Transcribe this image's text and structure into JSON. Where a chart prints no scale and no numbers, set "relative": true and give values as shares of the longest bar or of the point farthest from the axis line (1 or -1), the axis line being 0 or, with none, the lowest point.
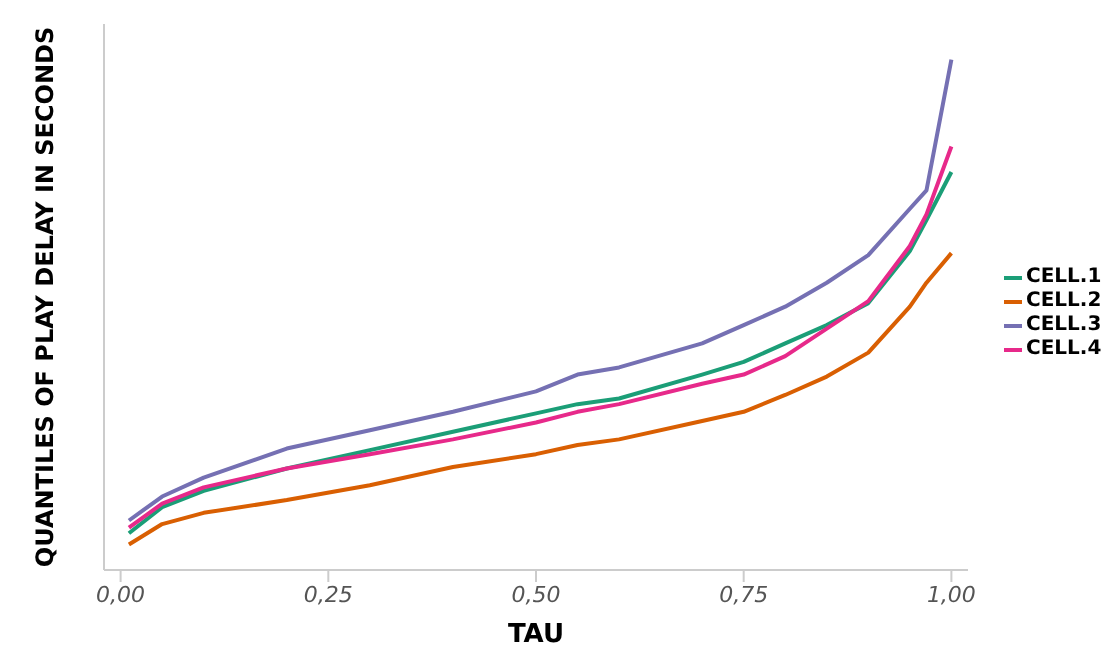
{
  "chart_data": {
    "type": "line",
    "xlabel": "TAU",
    "ylabel": "QUANTILES OF PLAY DELAY IN SECONDS",
    "relative": true,
    "x": [
      0.01,
      0.05,
      0.1,
      0.2,
      0.3,
      0.4,
      0.5,
      0.55,
      0.6,
      0.7,
      0.75,
      0.8,
      0.85,
      0.9,
      0.95,
      0.97,
      1.0
    ],
    "xlim": [
      -0.02,
      1.02
    ],
    "xticks": [
      {
        "value": 0,
        "label": "0,00"
      },
      {
        "value": 0.25,
        "label": "0,25"
      },
      {
        "value": 0.5,
        "label": "0,50"
      },
      {
        "value": 0.75,
        "label": "0,75"
      },
      {
        "value": 1,
        "label": "1,00"
      }
    ],
    "series": [
      {
        "name": "CELL.1",
        "color": "#1b9e77",
        "values": [
          0.072,
          0.123,
          0.155,
          0.199,
          0.235,
          0.271,
          0.307,
          0.325,
          0.336,
          0.383,
          0.408,
          0.444,
          0.48,
          0.523,
          0.625,
          0.686,
          0.78
        ]
      },
      {
        "name": "CELL.2",
        "color": "#d95f02",
        "values": [
          0.05,
          0.09,
          0.112,
          0.137,
          0.166,
          0.202,
          0.227,
          0.245,
          0.256,
          0.292,
          0.31,
          0.343,
          0.379,
          0.426,
          0.516,
          0.563,
          0.621
        ]
      },
      {
        "name": "CELL.3",
        "color": "#7570b3",
        "values": [
          0.097,
          0.144,
          0.181,
          0.238,
          0.274,
          0.31,
          0.35,
          0.383,
          0.397,
          0.444,
          0.48,
          0.516,
          0.563,
          0.617,
          0.708,
          0.744,
          1
        ]
      },
      {
        "name": "CELL.4",
        "color": "#e7298a",
        "values": [
          0.083,
          0.13,
          0.162,
          0.199,
          0.227,
          0.256,
          0.289,
          0.31,
          0.325,
          0.365,
          0.383,
          0.419,
          0.473,
          0.527,
          0.635,
          0.697,
          0.83
        ]
      }
    ],
    "grid": false,
    "legend": "right",
    "tick_labels": "x",
    "marker": "none",
    "line_style": "solid"
  }
}
